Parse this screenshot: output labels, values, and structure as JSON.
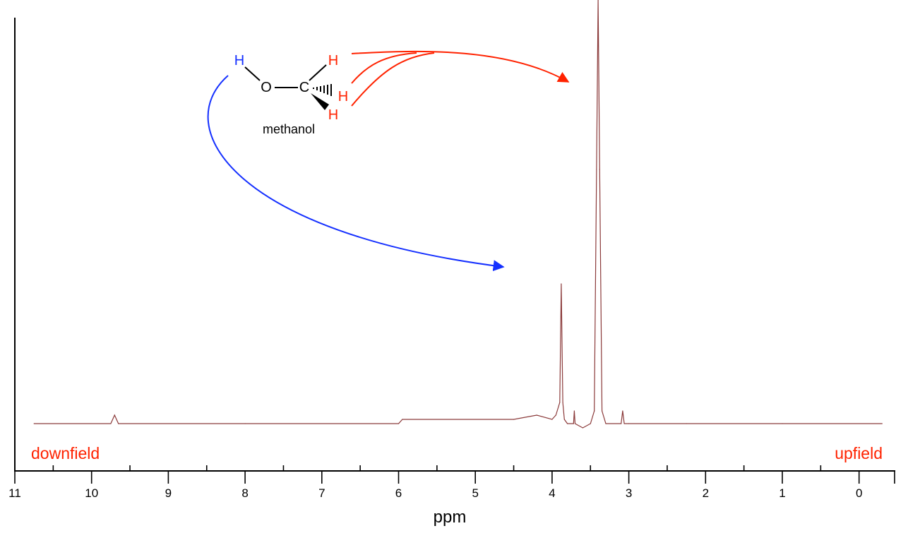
{
  "chart_data": {
    "type": "line",
    "xlabel": "ppm",
    "x_ticks": [
      11,
      10,
      9,
      8,
      7,
      6,
      5,
      4,
      3,
      2,
      1,
      0
    ],
    "xlim": [
      11,
      -0.5
    ],
    "x_reversed": true,
    "grid": false,
    "series": [
      {
        "x": [
          10.75,
          9.75,
          9.7,
          9.65,
          8.0,
          6.0,
          5.95,
          4.5,
          4.2,
          4.0,
          3.95,
          3.9,
          3.88,
          3.86,
          3.84,
          3.8,
          3.72,
          3.71,
          3.7,
          3.6,
          3.5,
          3.45,
          3.42,
          3.4,
          3.38,
          3.35,
          3.3,
          3.1,
          3.08,
          3.06,
          3.0,
          2.25,
          1.0,
          -0.3
        ],
        "y": [
          0.0,
          0.0,
          0.02,
          0.0,
          0.0,
          0.0,
          0.01,
          0.01,
          0.02,
          0.01,
          0.02,
          0.05,
          0.33,
          0.05,
          0.01,
          0.0,
          0.0,
          0.03,
          0.0,
          -0.01,
          0.0,
          0.03,
          0.6,
          1.0,
          0.6,
          0.03,
          0.0,
          0.0,
          0.03,
          0.0,
          0.0,
          0.0,
          0.0,
          0.0
        ],
        "color": "#8b3a3a"
      }
    ],
    "annotations": {
      "left": "downfield",
      "right": "upfield",
      "color": "#ff2200"
    }
  },
  "molecule": {
    "name": "methanol",
    "atoms": {
      "hydroxyl_h": "H",
      "oxygen": "O",
      "carbon": "C",
      "methyl_h1": "H",
      "methyl_h2": "H",
      "methyl_h3": "H"
    },
    "colors": {
      "hydroxyl": "#1530ff",
      "methyl": "#ff2200",
      "bond": "#000000"
    }
  }
}
